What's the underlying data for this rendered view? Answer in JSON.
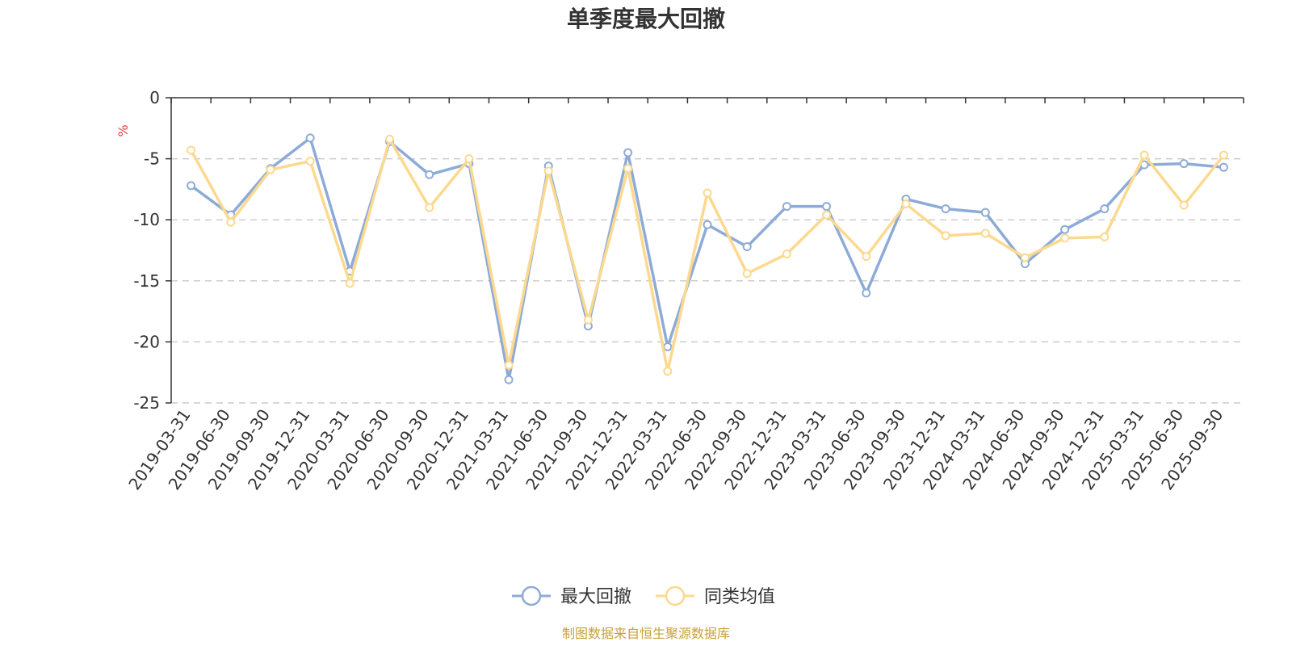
{
  "chart_data": {
    "type": "line",
    "title": "单季度最大回撤",
    "ylabel": "%",
    "ylim": [
      -25,
      0
    ],
    "yticks": [
      0,
      -5,
      -10,
      -15,
      -20,
      -25
    ],
    "grid": true,
    "legend_position": "bottom-center",
    "categories": [
      "2019-03-31",
      "2019-06-30",
      "2019-09-30",
      "2019-12-31",
      "2020-03-31",
      "2020-06-30",
      "2020-09-30",
      "2020-12-31",
      "2021-03-31",
      "2021-06-30",
      "2021-09-30",
      "2021-12-31",
      "2022-03-31",
      "2022-06-30",
      "2022-09-30",
      "2022-12-31",
      "2023-03-31",
      "2023-06-30",
      "2023-09-30",
      "2023-12-31",
      "2024-03-31",
      "2024-06-30",
      "2024-09-30",
      "2024-12-31",
      "2025-03-31",
      "2025-06-30",
      "2025-09-30"
    ],
    "series": [
      {
        "name": "最大回撤",
        "color": "#8eabd8",
        "values": [
          -7.2,
          -9.6,
          -5.8,
          -3.3,
          -14.2,
          -3.6,
          -6.3,
          -5.4,
          -23.1,
          -5.6,
          -18.7,
          -4.5,
          -20.4,
          -10.4,
          -12.2,
          -8.9,
          -8.9,
          -16.0,
          -8.3,
          -9.1,
          -9.4,
          -13.6,
          -10.8,
          -9.1,
          -5.5,
          -5.4,
          -5.7
        ]
      },
      {
        "name": "同类均值",
        "color": "#fcd98e",
        "values": [
          -4.3,
          -10.2,
          -5.9,
          -5.2,
          -15.2,
          -3.4,
          -9.0,
          -5.0,
          -21.9,
          -6.0,
          -18.2,
          -5.8,
          -22.4,
          -7.8,
          -14.4,
          -12.8,
          -9.6,
          -13.0,
          -8.7,
          -11.3,
          -11.1,
          -13.1,
          -11.5,
          -11.4,
          -4.7,
          -8.8,
          -4.7
        ]
      }
    ]
  },
  "source": "制图数据来自恒生聚源数据库"
}
